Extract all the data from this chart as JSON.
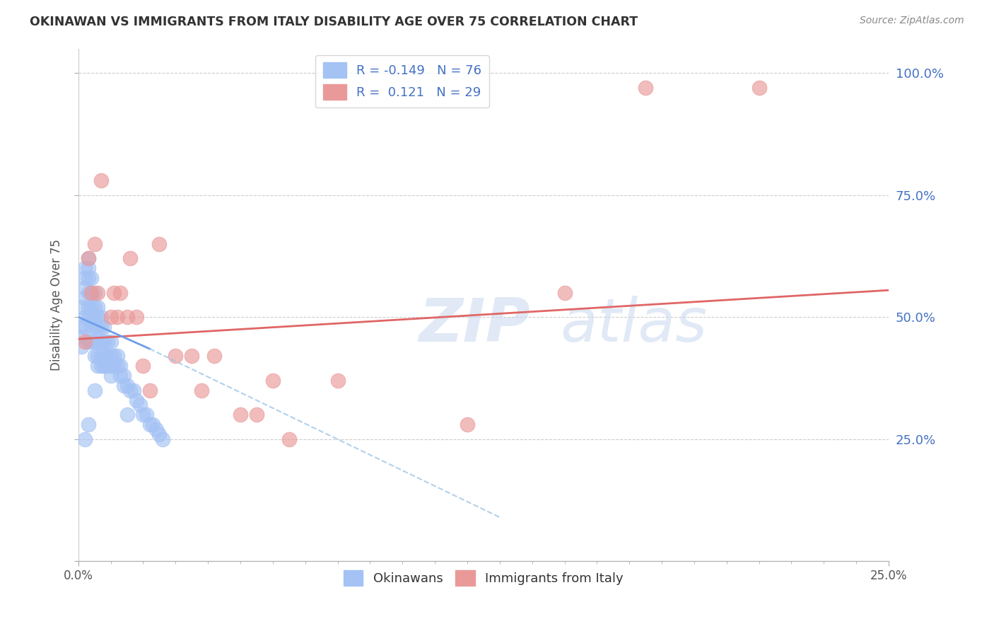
{
  "title": "OKINAWAN VS IMMIGRANTS FROM ITALY DISABILITY AGE OVER 75 CORRELATION CHART",
  "source": "Source: ZipAtlas.com",
  "ylabel": "Disability Age Over 75",
  "watermark_zip": "ZIP",
  "watermark_atlas": "atlas",
  "legend_label1": "Okinawans",
  "legend_label2": "Immigrants from Italy",
  "r1": -0.149,
  "n1": 76,
  "r2": 0.121,
  "n2": 29,
  "color_blue_scatter": "#a4c2f4",
  "color_pink_scatter": "#ea9999",
  "color_line_blue": "#6d9eeb",
  "color_line_pink": "#e06666",
  "color_line_blue_dashed": "#9fc5e8",
  "xlim": [
    0.0,
    0.25
  ],
  "ylim": [
    0.0,
    1.05
  ],
  "ytick_vals": [
    0.0,
    0.25,
    0.5,
    0.75,
    1.0
  ],
  "ytick_labels_right": [
    "",
    "25.0%",
    "50.0%",
    "75.0%",
    "100.0%"
  ],
  "ok_x": [
    0.001,
    0.001,
    0.001,
    0.001,
    0.002,
    0.002,
    0.002,
    0.002,
    0.002,
    0.002,
    0.003,
    0.003,
    0.003,
    0.003,
    0.003,
    0.003,
    0.003,
    0.004,
    0.004,
    0.004,
    0.004,
    0.004,
    0.004,
    0.005,
    0.005,
    0.005,
    0.005,
    0.005,
    0.005,
    0.006,
    0.006,
    0.006,
    0.006,
    0.006,
    0.006,
    0.007,
    0.007,
    0.007,
    0.007,
    0.007,
    0.008,
    0.008,
    0.008,
    0.008,
    0.009,
    0.009,
    0.009,
    0.01,
    0.01,
    0.01,
    0.011,
    0.011,
    0.012,
    0.012,
    0.013,
    0.013,
    0.014,
    0.014,
    0.015,
    0.016,
    0.017,
    0.018,
    0.019,
    0.02,
    0.021,
    0.022,
    0.023,
    0.024,
    0.025,
    0.026,
    0.015,
    0.01,
    0.008,
    0.005,
    0.003,
    0.002
  ],
  "ok_y": [
    0.52,
    0.48,
    0.46,
    0.44,
    0.6,
    0.58,
    0.56,
    0.54,
    0.5,
    0.48,
    0.62,
    0.6,
    0.58,
    0.55,
    0.52,
    0.5,
    0.45,
    0.58,
    0.55,
    0.52,
    0.5,
    0.48,
    0.45,
    0.55,
    0.52,
    0.5,
    0.48,
    0.45,
    0.42,
    0.52,
    0.5,
    0.48,
    0.45,
    0.42,
    0.4,
    0.5,
    0.48,
    0.45,
    0.42,
    0.4,
    0.48,
    0.45,
    0.42,
    0.4,
    0.45,
    0.42,
    0.4,
    0.45,
    0.42,
    0.4,
    0.42,
    0.4,
    0.42,
    0.4,
    0.4,
    0.38,
    0.38,
    0.36,
    0.36,
    0.35,
    0.35,
    0.33,
    0.32,
    0.3,
    0.3,
    0.28,
    0.28,
    0.27,
    0.26,
    0.25,
    0.3,
    0.38,
    0.4,
    0.35,
    0.28,
    0.25
  ],
  "it_x": [
    0.002,
    0.003,
    0.004,
    0.005,
    0.006,
    0.007,
    0.01,
    0.011,
    0.012,
    0.013,
    0.015,
    0.016,
    0.018,
    0.02,
    0.022,
    0.025,
    0.03,
    0.035,
    0.038,
    0.042,
    0.05,
    0.055,
    0.06,
    0.065,
    0.08,
    0.12,
    0.15,
    0.175,
    0.21
  ],
  "it_y": [
    0.45,
    0.62,
    0.55,
    0.65,
    0.55,
    0.78,
    0.5,
    0.55,
    0.5,
    0.55,
    0.5,
    0.62,
    0.5,
    0.4,
    0.35,
    0.65,
    0.42,
    0.42,
    0.35,
    0.42,
    0.3,
    0.3,
    0.37,
    0.25,
    0.37,
    0.28,
    0.55,
    0.97,
    0.97
  ],
  "blue_line_x0": 0.0,
  "blue_line_y0": 0.5,
  "blue_line_x1_solid": 0.022,
  "blue_line_y1_solid": 0.435,
  "blue_line_x1_dashed": 0.13,
  "blue_line_y1_dashed": 0.09,
  "pink_line_x0": 0.0,
  "pink_line_y0": 0.455,
  "pink_line_x1": 0.25,
  "pink_line_y1": 0.555
}
